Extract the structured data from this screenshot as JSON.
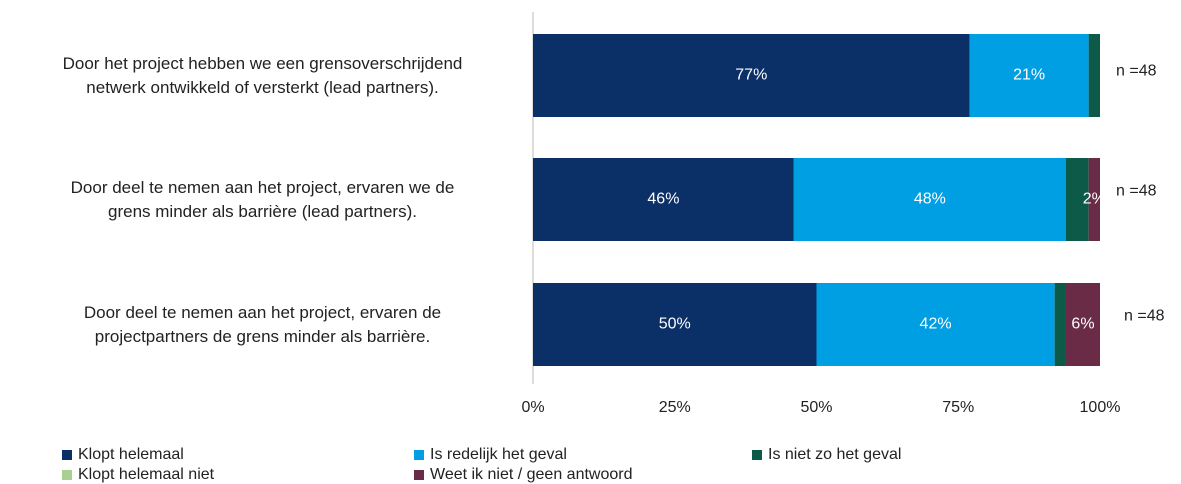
{
  "chart_data": {
    "type": "stacked_bar_horizontal",
    "categories": [
      "Door het project hebben we een grensoverschrijdend\nnetwerk ontwikkeld of versterkt (lead partners).",
      "Door deel te nemen aan het project, ervaren we de\ngrens minder als barrière (lead partners).",
      "Door deel te nemen aan het project, ervaren de\nprojectpartners de grens minder als barrière."
    ],
    "series": [
      {
        "name": "Klopt helemaal",
        "color": "#0b3068",
        "values": [
          77,
          46,
          50
        ],
        "value_labels": [
          "77%",
          "46%",
          "50%"
        ]
      },
      {
        "name": "Is redelijk het geval",
        "color": "#009fe3",
        "values": [
          21,
          48,
          42
        ],
        "value_labels": [
          "21%",
          "48%",
          "42%"
        ]
      },
      {
        "name": "Is niet zo het geval",
        "color": "#0e5a48",
        "values": [
          2,
          4,
          2
        ],
        "value_labels": [
          null,
          null,
          null
        ]
      },
      {
        "name": "Klopt helemaal niet",
        "color": "#a9d08e",
        "values": [
          0,
          0,
          0
        ],
        "value_labels": [
          null,
          null,
          null
        ]
      },
      {
        "name": "Weet ik niet / geen antwoord",
        "color": "#6a2b47",
        "values": [
          0,
          2,
          6
        ],
        "value_labels": [
          null,
          "2%",
          "6%"
        ]
      }
    ],
    "annotations": [
      "n =48",
      "n =48",
      "n =48"
    ],
    "xlim": [
      0,
      100
    ],
    "xticks": [
      {
        "value": 0,
        "label": "0%"
      },
      {
        "value": 25,
        "label": "25%"
      },
      {
        "value": 50,
        "label": "50%"
      },
      {
        "value": 75,
        "label": "75%"
      },
      {
        "value": 100,
        "label": "100%"
      }
    ],
    "grid": false
  }
}
